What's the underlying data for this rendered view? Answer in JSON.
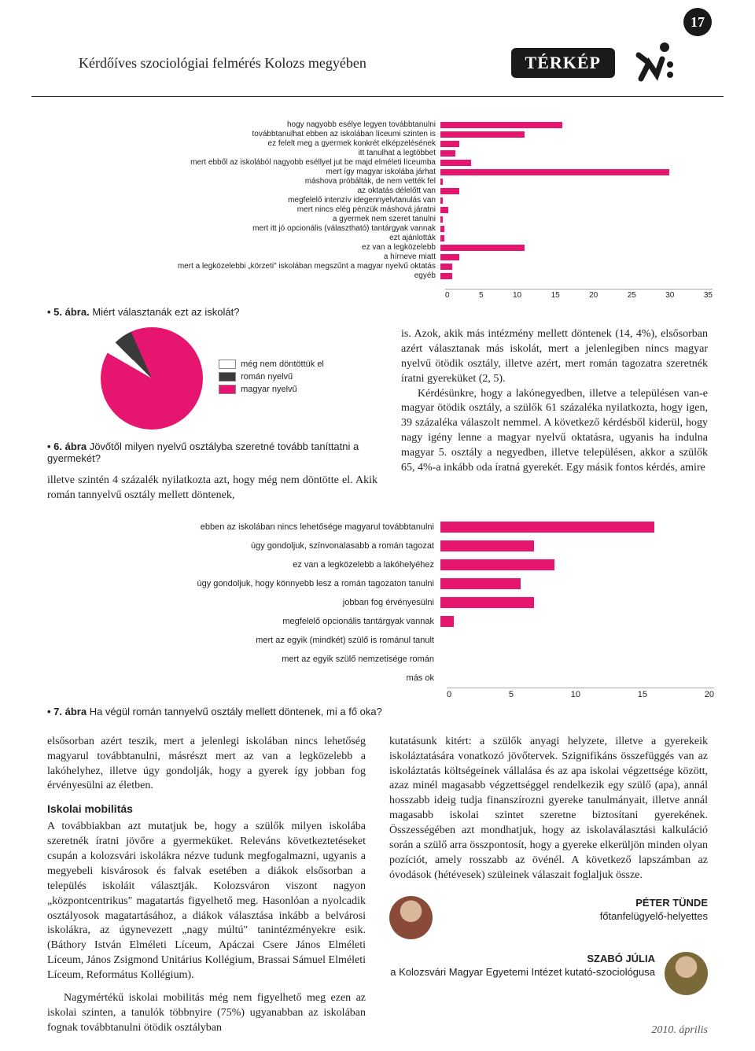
{
  "page_number": "17",
  "header": {
    "title": "Kérdőíves szociológiai felmérés Kolozs megyében",
    "section": "TÉRKÉP"
  },
  "chart5": {
    "type": "bar",
    "caption_prefix": "• 5. ábra.",
    "caption_text": "Miért választanák ezt az iskolát?",
    "xmax": 35,
    "xticks": [
      "0",
      "5",
      "10",
      "15",
      "20",
      "25",
      "30",
      "35"
    ],
    "bar_color": "#e6156f",
    "rows": [
      {
        "label": "hogy nagyobb esélye legyen továbbtanulni",
        "value": 16
      },
      {
        "label": "továbbtanulhat ebben az iskolában líceumi szinten is",
        "value": 11
      },
      {
        "label": "ez felelt meg a gyermek konkrét elképzelésének",
        "value": 2.5
      },
      {
        "label": "itt tanulhat a legtöbbet",
        "value": 2
      },
      {
        "label": "mert ebből az iskolából nagyobb eséllyel jut be majd elméleti líceumba",
        "value": 4
      },
      {
        "label": "mert így magyar iskolába járhat",
        "value": 30
      },
      {
        "label": "máshova próbálták, de nem vették fel",
        "value": 0.3
      },
      {
        "label": "az oktatás délelőtt van",
        "value": 2.5
      },
      {
        "label": "megfelelő intenzív idegennyelvtanulás van",
        "value": 0.3
      },
      {
        "label": "mert nincs elég pénzük máshová járatni",
        "value": 1
      },
      {
        "label": "a gyermek nem szeret tanulni",
        "value": 0.3
      },
      {
        "label": "mert itt jó opcionális (választható) tantárgyak vannak",
        "value": 0.5
      },
      {
        "label": "ezt ajánlották",
        "value": 0.5
      },
      {
        "label": "ez van a legközelebb",
        "value": 11
      },
      {
        "label": "a hírneve miatt",
        "value": 2.5
      },
      {
        "label": "mert a legközelebbi „körzeti\" iskolában megszűnt a magyar nyelvű oktatás",
        "value": 1.5
      },
      {
        "label": "egyéb",
        "value": 1.5
      }
    ]
  },
  "pie6": {
    "type": "pie",
    "caption_prefix": "• 6. ábra",
    "caption_text": "Jövőtől milyen nyelvű osztályba szeretné tovább taníttatni a gyermekét?",
    "slices": [
      {
        "label": "még nem döntöttük el",
        "value": 4,
        "color": "#ffffff"
      },
      {
        "label": "román nyelvű",
        "value": 6,
        "color": "#3a3a3a"
      },
      {
        "label": "magyar nyelvű",
        "value": 90,
        "color": "#e6156f"
      }
    ]
  },
  "mid_left_paragraph": "illetve szintén 4 százalék nyilatkozta azt, hogy még nem döntötte el. Akik román tannyelvű osztály mellett döntenek,",
  "mid_right_paragraphs": [
    "is. Azok, akik más intézmény mellett döntenek (14, 4%), elsősorban azért választanak más iskolát, mert a jelenlegiben nincs magyar nyelvű ötödik osztály, illetve azért, mert román tagozatra szeretnék íratni gyereküket (2, 5).",
    "Kérdésünkre, hogy a lakónegyedben, illetve a településen van-e magyar ötödik osztály, a szülők 61 százaléka nyilatkozta, hogy igen, 39 százaléka válaszolt nemmel. A következő kérdésből kiderül, hogy nagy igény lenne a magyar nyelvű oktatásra, ugyanis ha indulna magyar 5. osztály a negyedben, illetve településen, akkor a szülők 65, 4%-a inkább oda íratná gyerekét. Egy másik fontos kérdés, amire"
  ],
  "chart7": {
    "type": "bar",
    "caption_prefix": "• 7. ábra",
    "caption_text": "Ha végül román tannyelvű osztály mellett döntenek, mi a fő oka?",
    "xmax": 20,
    "xticks": [
      "0",
      "5",
      "10",
      "15",
      "20"
    ],
    "bar_color": "#e6156f",
    "rows": [
      {
        "label": "ebben az iskolában nincs lehetősége magyarul továbbtanulni",
        "value": 16
      },
      {
        "label": "úgy gondoljuk, színvonalasabb a román tagozat",
        "value": 7
      },
      {
        "label": "ez van a legközelebb a lakóhelyéhez",
        "value": 8.5
      },
      {
        "label": "úgy gondoljuk, hogy könnyebb lesz a román tagozaton tanulni",
        "value": 6
      },
      {
        "label": "jobban fog érvényesülni",
        "value": 7
      },
      {
        "label": "megfelelő opcionális tantárgyak vannak",
        "value": 1
      },
      {
        "label": "mert az egyik (mindkét) szülő is románul tanult",
        "value": 0
      },
      {
        "label": "mert az egyik szülő nemzetisége román",
        "value": 0
      },
      {
        "label": "más ok",
        "value": 0
      }
    ]
  },
  "col_left": [
    "elsősorban azért teszik, mert a jelenlegi iskolában nincs lehetőség magyarul továbbtanulni, másrészt mert az van a legközelebb a lakóhelyhez, illetve úgy gondolják, hogy a gyerek így jobban fog érvényesülni az életben.",
    "A továbbiakban azt mutatjuk be, hogy a szülők milyen iskolába szeretnék íratni jövőre a gyermeküket. Releváns következtetéseket csupán a kolozsvári iskolákra nézve tudunk megfogalmazni, ugyanis a megyebeli kisvárosok és falvak esetében a diákok elsősorban a település iskoláit választják. Kolozsváron viszont nagyon „központcentrikus\" magatartás figyelhető meg. Hasonlóan a nyolcadik osztályosok magatartásához, a diákok választása inkább a belvárosi iskolákra, az úgynevezett „nagy múltú\" tanintézményekre esik. (Báthory István Elméleti Líceum, Apáczai Csere János Elméleti Líceum, János Zsigmond Unitárius Kollégium, Brassai Sámuel Elméleti Líceum, Református Kollégium).",
    "Nagymértékű iskolai mobilitás még nem figyelhető meg ezen az iskolai szinten, a tanulók többnyire (75%) ugyanabban az iskolában fognak továbbtanulni ötödik osztályban"
  ],
  "subhead_left": "Iskolai mobilitás",
  "col_right": [
    "kutatásunk kitért: a szülők anyagi helyzete, illetve a gyerekeik iskoláztatására vonatkozó jövőtervek. Szignifikáns összefüggés van az iskoláztatás költségeinek vállalása és az apa iskolai végzettsége között, azaz minél magasabb végzettséggel rendelkezik egy szülő (apa), annál hosszabb ideig tudja finanszírozni gyereke tanulmányait, illetve annál magasabb iskolai szintet szeretne biztosítani gyerekének. Összességében azt mondhatjuk, hogy az iskolaválasztási kalkuláció során a szülő arra összpontosít, hogy a gyereke elkerüljön minden olyan pozíciót, amely rosszabb az övénél. A következő lapszámban az óvodások (hétévesek) szüleinek válaszait foglaljuk össze."
  ],
  "authors": [
    {
      "name": "PÉTER TÜNDE",
      "title": "főtanfelügyelő-helyettes",
      "avatar_color": "#8a4a3a"
    },
    {
      "name": "SZABÓ JÚLIA",
      "title": "a Kolozsvári Magyar Egyetemi Intézet kutató-szociológusa",
      "avatar_color": "#7a6a3a"
    }
  ],
  "footer": "2010. április"
}
